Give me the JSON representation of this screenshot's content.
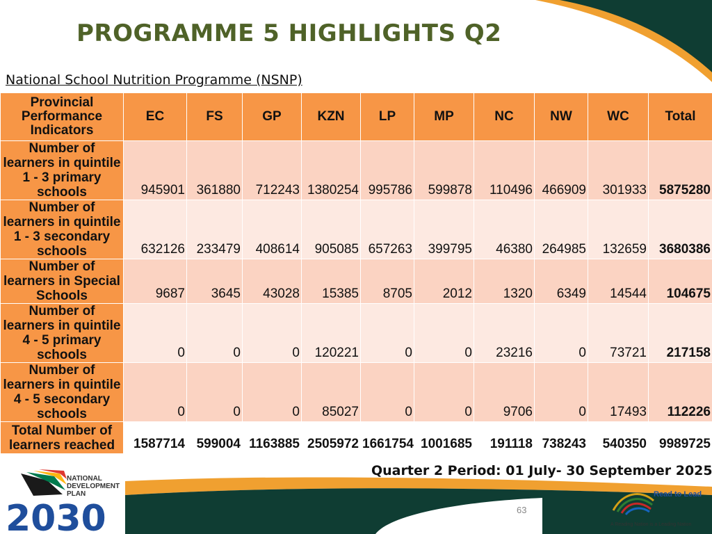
{
  "title": "PROGRAMME 5 HIGHLIGHTS Q2",
  "subtitle": "National School Nutrition Programme (NSNP)",
  "table": {
    "headers": [
      "Provincial Performance Indicators",
      "EC",
      "FS",
      "GP",
      "KZN",
      "LP",
      "MP",
      "NC",
      "NW",
      "WC",
      "Total"
    ],
    "rows": [
      {
        "label": "Number of learners in quintile 1 - 3 primary schools",
        "values": [
          "945901",
          "361880",
          "712243",
          "1380254",
          "995786",
          "599878",
          "110496",
          "466909",
          "301933",
          "5875280"
        ]
      },
      {
        "label": "Number of learners in quintile 1 - 3 secondary schools",
        "values": [
          "632126",
          "233479",
          "408614",
          "905085",
          "657263",
          "399795",
          "46380",
          "264985",
          "132659",
          "3680386"
        ]
      },
      {
        "label": "Number of learners in Special Schools",
        "values": [
          "9687",
          "3645",
          "43028",
          "15385",
          "8705",
          "2012",
          "1320",
          "6349",
          "14544",
          "104675"
        ]
      },
      {
        "label": "Number of learners in quintile 4 - 5 primary schools",
        "values": [
          "0",
          "0",
          "0",
          "120221",
          "0",
          "0",
          "23216",
          "0",
          "73721",
          "217158"
        ]
      },
      {
        "label": "Number of learners in quintile 4 - 5 secondary schools",
        "values": [
          "0",
          "0",
          "0",
          "85027",
          "0",
          "0",
          "9706",
          "0",
          "17493",
          "112226"
        ]
      },
      {
        "label": "Total Number of learners reached",
        "values": [
          "1587714",
          "599004",
          "1163885",
          "2505972",
          "1661754",
          "1001685",
          "191118",
          "738243",
          "540350",
          "9989725"
        ]
      }
    ]
  },
  "footer": {
    "quarter_period": "Quarter 2 Period: 01 July- 30 September 2025",
    "page_number": "63"
  },
  "logos": {
    "ndp_line1": "NATIONAL",
    "ndp_line2": "DEVELOPMENT",
    "ndp_line3": "PLAN",
    "ndp_year": "2030",
    "rtl_name": "Read to Lead",
    "rtl_tagline": "A Reading Nation is a Leading Nation"
  },
  "colors": {
    "title_green": "#4f6228",
    "header_orange": "#f79646",
    "row_light": "#fde9e1",
    "row_dark": "#fbd3c2",
    "deco_dark_green": "#0f3d33",
    "deco_orange": "#f0a030",
    "ndp_blue": "#1f4e9c"
  }
}
